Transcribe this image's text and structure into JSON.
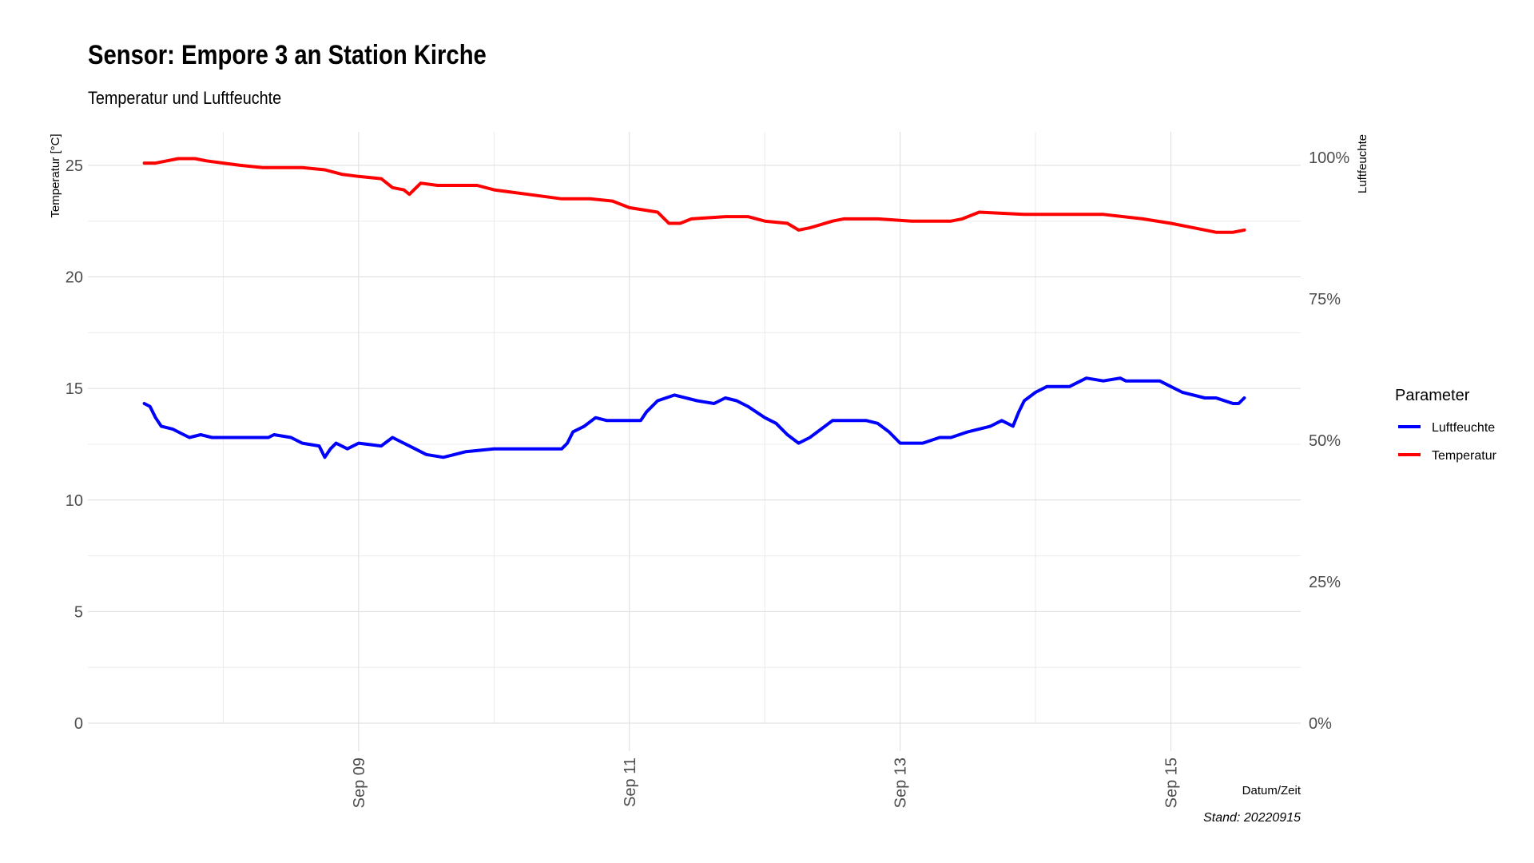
{
  "chart_data": {
    "type": "line",
    "title": "Sensor: Empore 3 an Station Kirche",
    "subtitle": "Temperatur und Luftfeuchte",
    "xlabel": "Datum/Zeit",
    "ylabel_left": "Temperatur [°C]",
    "ylabel_right": "Luftfeuchte",
    "caption": "Stand: 20220915",
    "x_range": [
      "2022-09-07T00:00",
      "2022-09-15T23:00"
    ],
    "ylim_left": [
      0,
      26.5
    ],
    "ylim_right_percent": [
      0,
      100
    ],
    "y_ticks_left": [
      "0",
      "5",
      "10",
      "15",
      "20",
      "25"
    ],
    "y_ticks_right": [
      "0%",
      "25%",
      "50%",
      "75%",
      "100%"
    ],
    "x_ticks": [
      {
        "date": "2022-09-09T00:00",
        "label": "Sep 09"
      },
      {
        "date": "2022-09-11T00:00",
        "label": "Sep 11"
      },
      {
        "date": "2022-09-13T00:00",
        "label": "Sep 13"
      },
      {
        "date": "2022-09-15T00:00",
        "label": "Sep 15"
      }
    ],
    "grid": true,
    "legend": {
      "title": "Parameter",
      "position": "right",
      "entries": [
        {
          "label": "Luftfeuchte",
          "color": "#0000ff"
        },
        {
          "label": "Temperatur",
          "color": "#ff0000"
        }
      ]
    },
    "series": [
      {
        "name": "Temperatur",
        "color": "#ff0000",
        "axis": "left",
        "points": [
          [
            "2022-09-07T10:00",
            25.1
          ],
          [
            "2022-09-07T12:00",
            25.1
          ],
          [
            "2022-09-07T14:00",
            25.2
          ],
          [
            "2022-09-07T16:00",
            25.3
          ],
          [
            "2022-09-07T19:00",
            25.3
          ],
          [
            "2022-09-07T21:00",
            25.2
          ],
          [
            "2022-09-08T00:00",
            25.1
          ],
          [
            "2022-09-08T03:00",
            25.0
          ],
          [
            "2022-09-08T07:00",
            24.9
          ],
          [
            "2022-09-08T14:00",
            24.9
          ],
          [
            "2022-09-08T18:00",
            24.8
          ],
          [
            "2022-09-08T21:00",
            24.6
          ],
          [
            "2022-09-09T00:00",
            24.5
          ],
          [
            "2022-09-09T04:00",
            24.4
          ],
          [
            "2022-09-09T06:00",
            24.0
          ],
          [
            "2022-09-09T08:00",
            23.9
          ],
          [
            "2022-09-09T09:00",
            23.7
          ],
          [
            "2022-09-09T11:00",
            24.2
          ],
          [
            "2022-09-09T14:00",
            24.1
          ],
          [
            "2022-09-09T21:00",
            24.1
          ],
          [
            "2022-09-10T00:00",
            23.9
          ],
          [
            "2022-09-10T06:00",
            23.7
          ],
          [
            "2022-09-10T12:00",
            23.5
          ],
          [
            "2022-09-10T17:00",
            23.5
          ],
          [
            "2022-09-10T21:00",
            23.4
          ],
          [
            "2022-09-11T00:00",
            23.1
          ],
          [
            "2022-09-11T05:00",
            22.9
          ],
          [
            "2022-09-11T07:00",
            22.4
          ],
          [
            "2022-09-11T09:00",
            22.4
          ],
          [
            "2022-09-11T11:00",
            22.6
          ],
          [
            "2022-09-11T17:00",
            22.7
          ],
          [
            "2022-09-11T21:00",
            22.7
          ],
          [
            "2022-09-12T00:00",
            22.5
          ],
          [
            "2022-09-12T04:00",
            22.4
          ],
          [
            "2022-09-12T06:00",
            22.1
          ],
          [
            "2022-09-12T08:00",
            22.2
          ],
          [
            "2022-09-12T12:00",
            22.5
          ],
          [
            "2022-09-12T14:00",
            22.6
          ],
          [
            "2022-09-12T20:00",
            22.6
          ],
          [
            "2022-09-13T02:00",
            22.5
          ],
          [
            "2022-09-13T09:00",
            22.5
          ],
          [
            "2022-09-13T11:00",
            22.6
          ],
          [
            "2022-09-13T14:00",
            22.9
          ],
          [
            "2022-09-13T22:00",
            22.8
          ],
          [
            "2022-09-14T06:00",
            22.8
          ],
          [
            "2022-09-14T12:00",
            22.8
          ],
          [
            "2022-09-14T19:00",
            22.6
          ],
          [
            "2022-09-15T00:00",
            22.4
          ],
          [
            "2022-09-15T04:00",
            22.2
          ],
          [
            "2022-09-15T08:00",
            22.0
          ],
          [
            "2022-09-15T11:00",
            22.0
          ],
          [
            "2022-09-15T13:00",
            22.1
          ]
        ]
      },
      {
        "name": "Luftfeuchte",
        "color": "#0000ff",
        "axis": "right",
        "points": [
          [
            "2022-09-07T10:00",
            56.5
          ],
          [
            "2022-09-07T11:00",
            56.0
          ],
          [
            "2022-09-07T12:00",
            54.0
          ],
          [
            "2022-09-07T13:00",
            52.5
          ],
          [
            "2022-09-07T15:00",
            52.0
          ],
          [
            "2022-09-07T17:00",
            51.0
          ],
          [
            "2022-09-07T18:00",
            50.5
          ],
          [
            "2022-09-07T20:00",
            51.0
          ],
          [
            "2022-09-07T22:00",
            50.5
          ],
          [
            "2022-09-08T03:00",
            50.5
          ],
          [
            "2022-09-08T08:00",
            50.5
          ],
          [
            "2022-09-08T09:00",
            51.0
          ],
          [
            "2022-09-08T12:00",
            50.5
          ],
          [
            "2022-09-08T14:00",
            49.5
          ],
          [
            "2022-09-08T17:00",
            49.0
          ],
          [
            "2022-09-08T18:00",
            47.0
          ],
          [
            "2022-09-08T19:00",
            48.5
          ],
          [
            "2022-09-08T20:00",
            49.5
          ],
          [
            "2022-09-08T22:00",
            48.5
          ],
          [
            "2022-09-09T00:00",
            49.5
          ],
          [
            "2022-09-09T04:00",
            49.0
          ],
          [
            "2022-09-09T06:00",
            50.5
          ],
          [
            "2022-09-09T08:00",
            49.5
          ],
          [
            "2022-09-09T10:00",
            48.5
          ],
          [
            "2022-09-09T12:00",
            47.5
          ],
          [
            "2022-09-09T15:00",
            47.0
          ],
          [
            "2022-09-09T17:00",
            47.5
          ],
          [
            "2022-09-09T19:00",
            48.0
          ],
          [
            "2022-09-10T00:00",
            48.5
          ],
          [
            "2022-09-10T12:00",
            48.5
          ],
          [
            "2022-09-10T13:00",
            49.5
          ],
          [
            "2022-09-10T14:00",
            51.5
          ],
          [
            "2022-09-10T16:00",
            52.5
          ],
          [
            "2022-09-10T18:00",
            54.0
          ],
          [
            "2022-09-10T20:00",
            53.5
          ],
          [
            "2022-09-11T00:00",
            53.5
          ],
          [
            "2022-09-11T02:00",
            53.5
          ],
          [
            "2022-09-11T03:00",
            55.0
          ],
          [
            "2022-09-11T05:00",
            57.0
          ],
          [
            "2022-09-11T08:00",
            58.0
          ],
          [
            "2022-09-11T12:00",
            57.0
          ],
          [
            "2022-09-11T15:00",
            56.5
          ],
          [
            "2022-09-11T17:00",
            57.5
          ],
          [
            "2022-09-11T19:00",
            57.0
          ],
          [
            "2022-09-11T21:00",
            56.0
          ],
          [
            "2022-09-12T00:00",
            54.0
          ],
          [
            "2022-09-12T02:00",
            53.0
          ],
          [
            "2022-09-12T04:00",
            51.0
          ],
          [
            "2022-09-12T06:00",
            49.5
          ],
          [
            "2022-09-12T08:00",
            50.5
          ],
          [
            "2022-09-12T10:00",
            52.0
          ],
          [
            "2022-09-12T12:00",
            53.5
          ],
          [
            "2022-09-12T18:00",
            53.5
          ],
          [
            "2022-09-12T20:00",
            53.0
          ],
          [
            "2022-09-12T22:00",
            51.5
          ],
          [
            "2022-09-13T00:00",
            49.5
          ],
          [
            "2022-09-13T04:00",
            49.5
          ],
          [
            "2022-09-13T07:00",
            50.5
          ],
          [
            "2022-09-13T09:00",
            50.5
          ],
          [
            "2022-09-13T12:00",
            51.5
          ],
          [
            "2022-09-13T14:00",
            52.0
          ],
          [
            "2022-09-13T16:00",
            52.5
          ],
          [
            "2022-09-13T18:00",
            53.5
          ],
          [
            "2022-09-13T20:00",
            52.5
          ],
          [
            "2022-09-13T21:00",
            55.0
          ],
          [
            "2022-09-13T22:00",
            57.0
          ],
          [
            "2022-09-14T00:00",
            58.5
          ],
          [
            "2022-09-14T02:00",
            59.5
          ],
          [
            "2022-09-14T06:00",
            59.5
          ],
          [
            "2022-09-14T09:00",
            61.0
          ],
          [
            "2022-09-14T12:00",
            60.5
          ],
          [
            "2022-09-14T15:00",
            61.0
          ],
          [
            "2022-09-14T16:00",
            60.5
          ],
          [
            "2022-09-14T18:00",
            60.5
          ],
          [
            "2022-09-14T22:00",
            60.5
          ],
          [
            "2022-09-15T00:00",
            59.5
          ],
          [
            "2022-09-15T02:00",
            58.5
          ],
          [
            "2022-09-15T06:00",
            57.5
          ],
          [
            "2022-09-15T08:00",
            57.5
          ],
          [
            "2022-09-15T11:00",
            56.5
          ],
          [
            "2022-09-15T12:00",
            56.5
          ],
          [
            "2022-09-15T13:00",
            57.5
          ]
        ]
      }
    ]
  }
}
